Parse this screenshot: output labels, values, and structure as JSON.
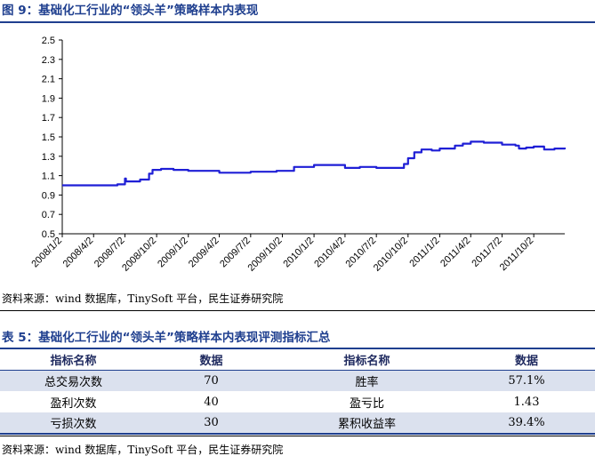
{
  "figure": {
    "title": "图 9：基础化工行业的“领头羊”策略样本内表现",
    "source": "资料来源：wind 数据库，TinySoft 平台，民生证券研究院"
  },
  "chart_data": {
    "type": "line",
    "title": "",
    "xlabel": "",
    "ylabel": "",
    "ylim": [
      0.5,
      2.5
    ],
    "yticks": [
      "2.5",
      "2.3",
      "2.1",
      "1.9",
      "1.7",
      "1.5",
      "1.3",
      "1.1",
      "0.9",
      "0.7",
      "0.5"
    ],
    "xticks": [
      "2008/1/2",
      "2008/4/2",
      "2008/7/2",
      "2008/10/2",
      "2009/1/2",
      "2009/4/2",
      "2009/7/2",
      "2009/10/2",
      "2010/1/2",
      "2010/4/2",
      "2010/7/2",
      "2010/10/2",
      "2011/1/2",
      "2011/4/2",
      "2011/7/2",
      "2011/10/2"
    ],
    "line_color": "#1f1fd6",
    "series": [
      {
        "name": "",
        "x": [
          "2008/1/2",
          "2008/6/10",
          "2008/7/2",
          "2008/7/5",
          "2008/8/15",
          "2008/9/10",
          "2008/9/20",
          "2008/10/15",
          "2008/11/20",
          "2009/1/2",
          "2009/4/2",
          "2009/6/10",
          "2009/7/2",
          "2009/8/20",
          "2009/9/15",
          "2009/10/2",
          "2009/11/5",
          "2010/1/2",
          "2010/4/2",
          "2010/5/15",
          "2010/7/2",
          "2010/9/1",
          "2010/9/20",
          "2010/10/2",
          "2010/10/20",
          "2010/11/10",
          "2010/12/10",
          "2011/1/2",
          "2011/2/15",
          "2011/3/10",
          "2011/4/2",
          "2011/5/10",
          "2011/6/10",
          "2011/7/2",
          "2011/8/10",
          "2011/8/20",
          "2011/9/10",
          "2011/10/2",
          "2011/11/1",
          "2011/12/1",
          "2011/12/31"
        ],
        "values": [
          1.0,
          1.01,
          1.07,
          1.04,
          1.06,
          1.12,
          1.16,
          1.17,
          1.16,
          1.15,
          1.13,
          1.13,
          1.14,
          1.14,
          1.15,
          1.15,
          1.19,
          1.21,
          1.18,
          1.19,
          1.18,
          1.18,
          1.22,
          1.28,
          1.34,
          1.37,
          1.36,
          1.38,
          1.41,
          1.43,
          1.45,
          1.44,
          1.44,
          1.42,
          1.41,
          1.38,
          1.39,
          1.4,
          1.37,
          1.38,
          1.39
        ]
      }
    ]
  },
  "table": {
    "title": "表 5：基础化工行业的“领头羊”策略样本内表现评测指标汇总",
    "headers": [
      "指标名称",
      "数据",
      "指标名称",
      "数据"
    ],
    "rows": [
      [
        "总交易次数",
        "70",
        "胜率",
        "57.1%"
      ],
      [
        "盈利次数",
        "40",
        "盈亏比",
        "1.43"
      ],
      [
        "亏损次数",
        "30",
        "累积收益率",
        "39.4%"
      ]
    ],
    "shade_color": "#dbe1ee",
    "source": "资料来源：wind 数据库，TinySoft 平台，民生证券研究院"
  }
}
